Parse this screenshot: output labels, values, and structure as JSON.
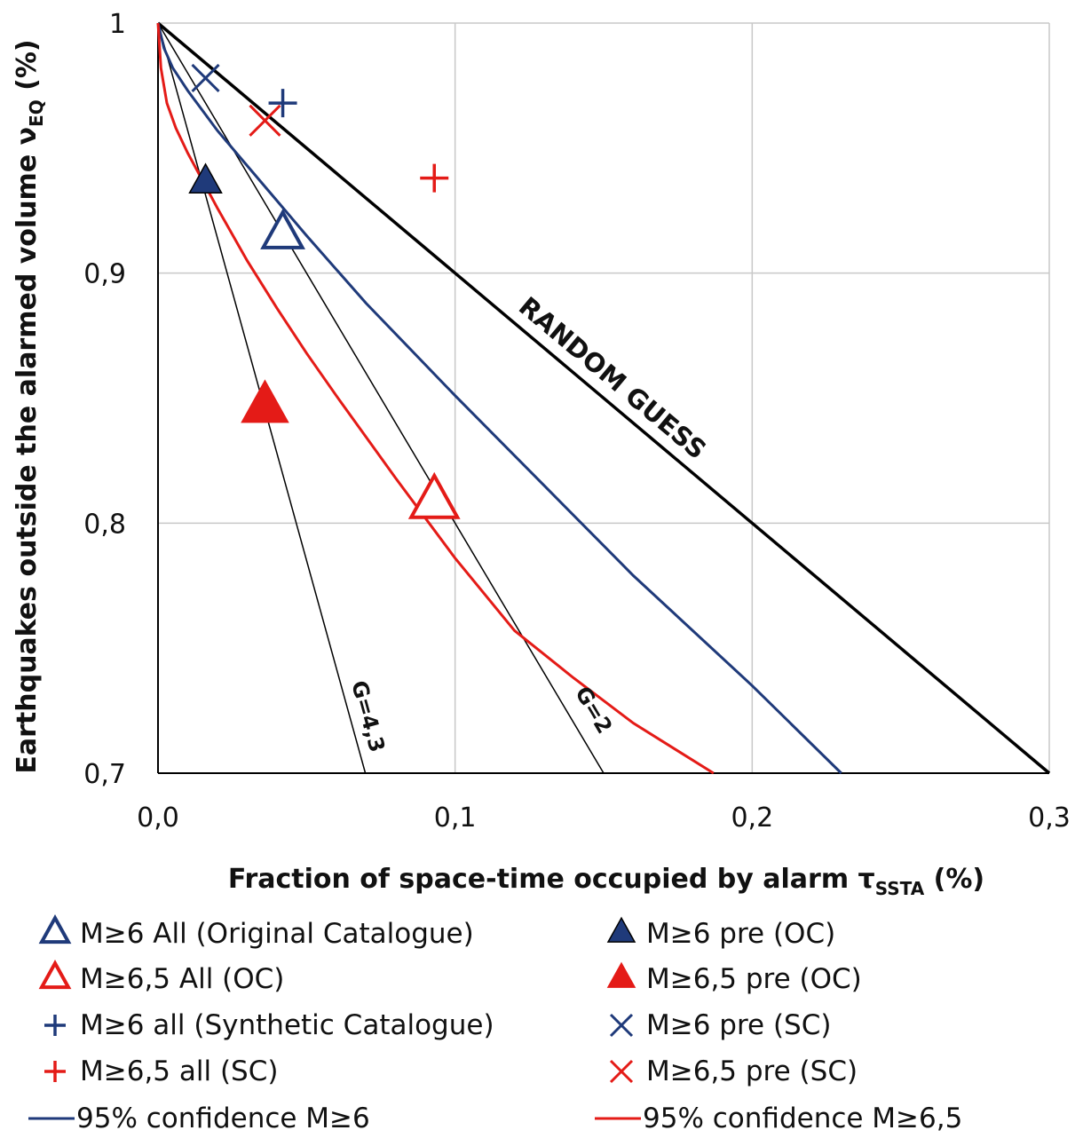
{
  "chart_data": {
    "type": "scatter",
    "xlabel": "Fraction of space-time occupied by alarm τ",
    "xlabel_sub": "SSTA",
    "xlabel_unit": " (%)",
    "ylabel": "Earthquakes outside the alarmed volume  ν",
    "ylabel_sub": "EQ",
    "ylabel_unit": " (%)",
    "xlim": [
      0,
      0.3
    ],
    "ylim": [
      0.7,
      1
    ],
    "x_ticks": [
      0,
      0.1,
      0.2,
      0.3
    ],
    "x_tick_labels": [
      "0,0",
      "0,1",
      "0,2",
      "0,3"
    ],
    "y_ticks": [
      0.7,
      0.8,
      0.9,
      1
    ],
    "y_tick_labels": [
      "0,7",
      "0,8",
      "0,9",
      "1"
    ],
    "grid": true,
    "legend_position": "bottom",
    "colors": {
      "blue": "#1f3a7a",
      "red": "#e41b17",
      "black": "#000000"
    },
    "reference_lines": [
      {
        "label": "RANDOM GUESS",
        "x": [
          0,
          0.3
        ],
        "y": [
          1,
          0.7
        ]
      },
      {
        "label": "G=2",
        "x": [
          0,
          0.15
        ],
        "y": [
          1,
          0.7
        ]
      },
      {
        "label": "G=4,3",
        "x": [
          0,
          0.0698
        ],
        "y": [
          1,
          0.7
        ]
      }
    ],
    "series": [
      {
        "name": "M≥6 All (Original Catalogue)",
        "marker": "open-triangle",
        "color": "blue",
        "points": [
          [
            0.042,
            0.915
          ]
        ]
      },
      {
        "name": "M≥6 pre (OC)",
        "marker": "filled-triangle",
        "color": "blue",
        "points": [
          [
            0.016,
            0.936
          ]
        ]
      },
      {
        "name": "M≥6,5 All (OC)",
        "marker": "open-triangle",
        "color": "red",
        "points": [
          [
            0.093,
            0.808
          ]
        ]
      },
      {
        "name": "M≥6,5 pre (OC)",
        "marker": "filled-triangle",
        "color": "red",
        "points": [
          [
            0.036,
            0.846
          ]
        ]
      },
      {
        "name": "M≥6 all (Synthetic Catalogue)",
        "marker": "plus",
        "color": "blue",
        "points": [
          [
            0.042,
            0.968
          ]
        ]
      },
      {
        "name": "M≥6 pre (SC)",
        "marker": "x",
        "color": "blue",
        "points": [
          [
            0.016,
            0.978
          ]
        ]
      },
      {
        "name": "M≥6,5 all (SC)",
        "marker": "plus",
        "color": "red",
        "points": [
          [
            0.093,
            0.938
          ]
        ]
      },
      {
        "name": "M≥6,5 pre (SC)",
        "marker": "x",
        "color": "red",
        "points": [
          [
            0.036,
            0.961
          ]
        ]
      },
      {
        "name": "95% confidence M≥6",
        "marker": "line",
        "color": "blue",
        "x": [
          0,
          0.002,
          0.005,
          0.01,
          0.02,
          0.03,
          0.04,
          0.05,
          0.07,
          0.1,
          0.13,
          0.16,
          0.2,
          0.23
        ],
        "y": [
          1,
          0.99,
          0.982,
          0.973,
          0.957,
          0.943,
          0.929,
          0.915,
          0.888,
          0.851,
          0.815,
          0.779,
          0.735,
          0.7
        ]
      },
      {
        "name": "95% confidence M≥6,5",
        "marker": "line",
        "color": "red",
        "x": [
          0,
          0.001,
          0.003,
          0.006,
          0.01,
          0.015,
          0.02,
          0.03,
          0.04,
          0.05,
          0.06,
          0.08,
          0.1,
          0.12,
          0.14,
          0.16,
          0.187
        ],
        "y": [
          1,
          0.982,
          0.968,
          0.958,
          0.948,
          0.937,
          0.926,
          0.905,
          0.886,
          0.868,
          0.851,
          0.818,
          0.786,
          0.757,
          0.738,
          0.72,
          0.7
        ]
      }
    ]
  }
}
